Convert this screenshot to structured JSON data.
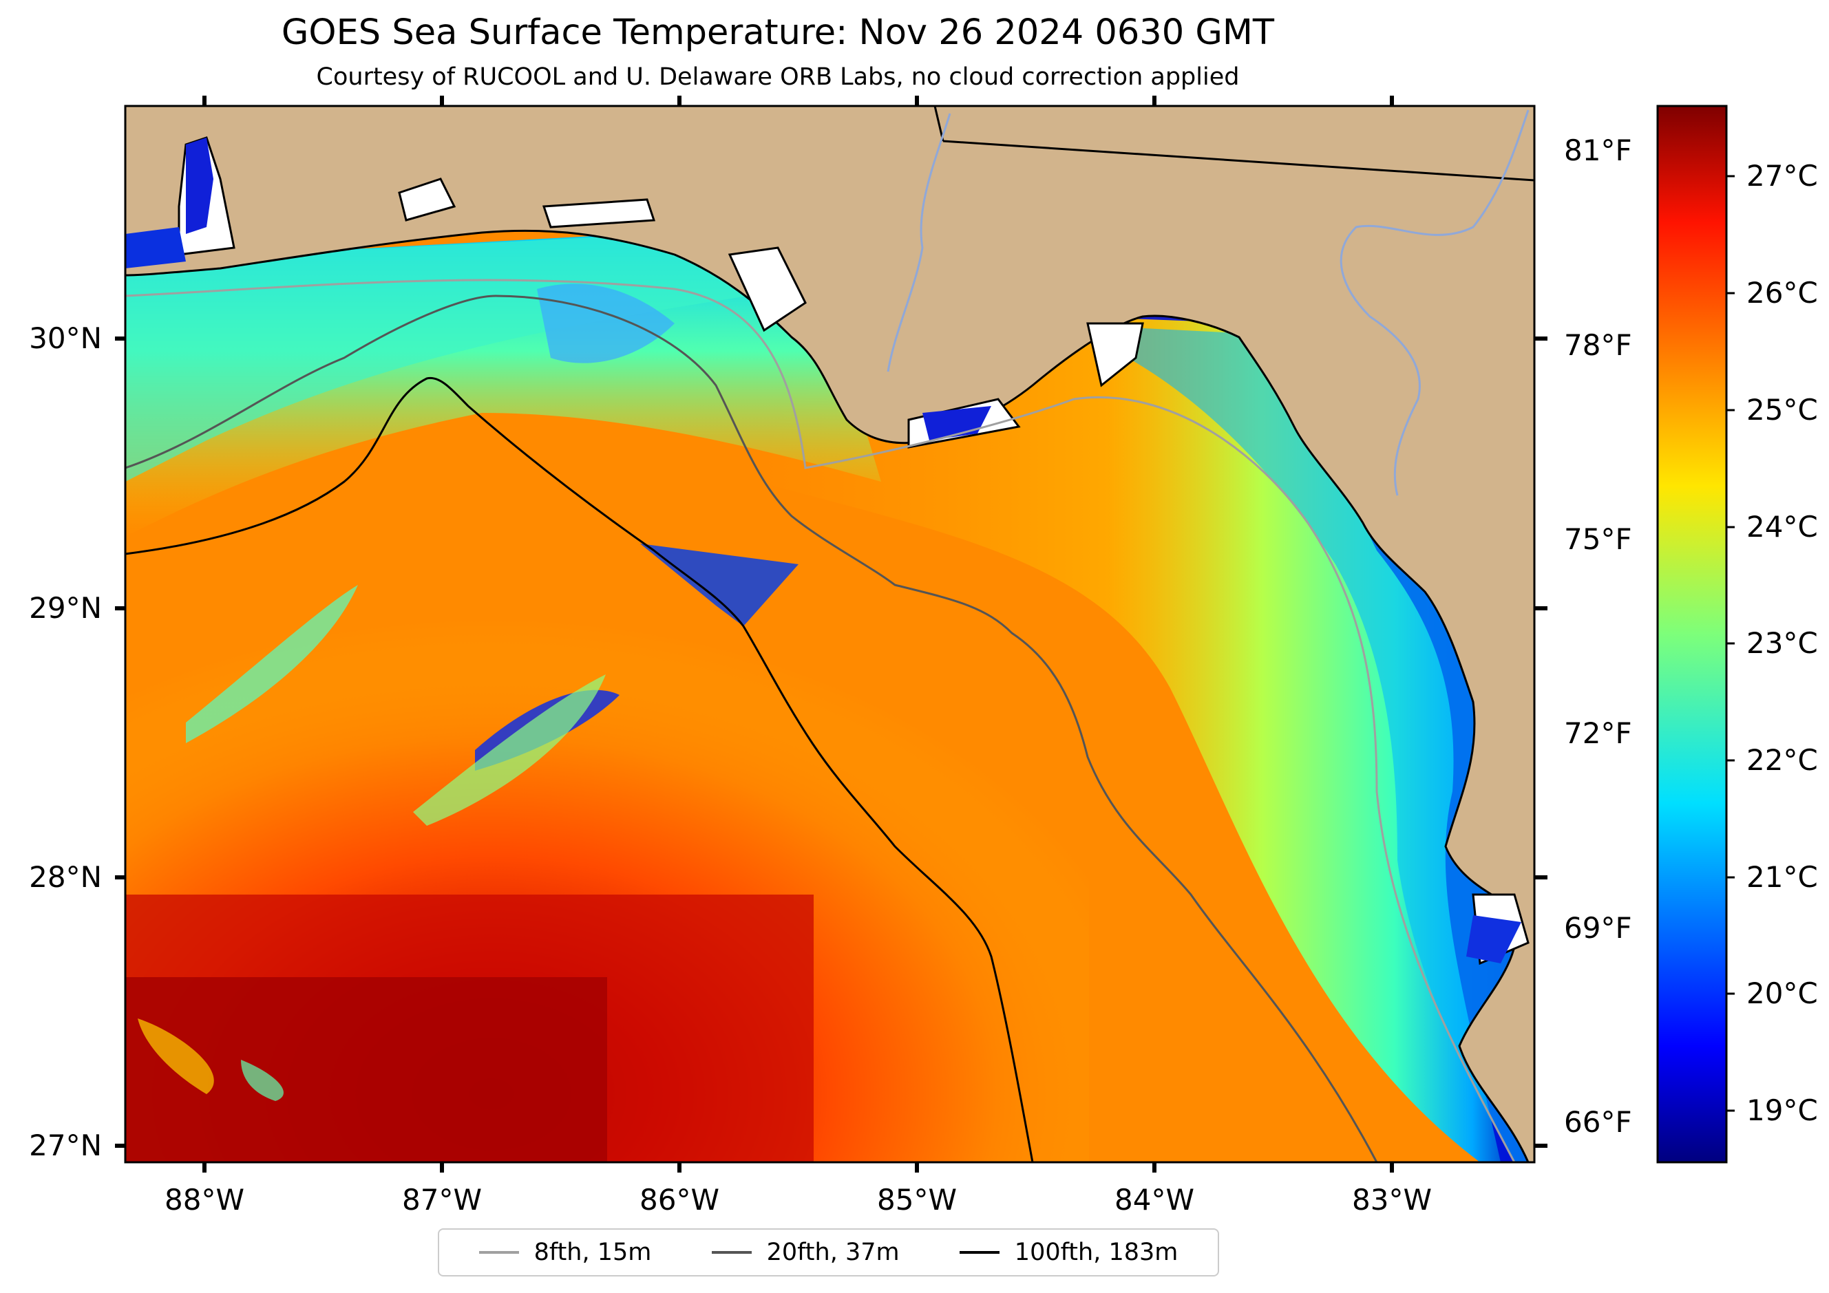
{
  "title": "GOES Sea Surface Temperature: Nov 26 2024 0630 GMT",
  "subtitle": "Courtesy of RUCOOL and U. Delaware ORB Labs, no cloud correction applied",
  "map": {
    "lon_labels": [
      "88°W",
      "87°W",
      "86°W",
      "85°W",
      "84°W",
      "83°W"
    ],
    "lat_labels": [
      "30°N",
      "29°N",
      "28°N",
      "27°N"
    ],
    "fahrenheit_labels": [
      "81°F",
      "78°F",
      "75°F",
      "72°F",
      "69°F",
      "66°F"
    ],
    "land_color": "#d2b48c",
    "coastline_color": "#000000"
  },
  "colorbar": {
    "colormap": "jet",
    "labels": [
      "27°C",
      "26°C",
      "25°C",
      "24°C",
      "23°C",
      "22°C",
      "21°C",
      "20°C",
      "19°C"
    ]
  },
  "legend": {
    "items": [
      {
        "label": "8fth, 15m",
        "color": "#a0a0a0"
      },
      {
        "label": "20fth, 37m",
        "color": "#555555"
      },
      {
        "label": "100fth, 183m",
        "color": "#000000"
      }
    ]
  }
}
